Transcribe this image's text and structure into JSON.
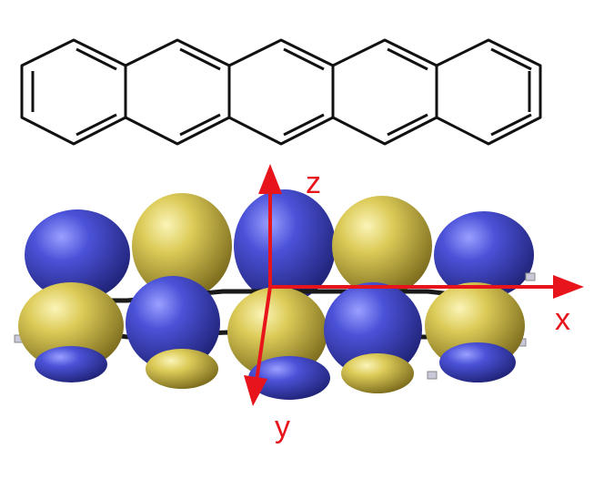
{
  "axes": {
    "z_label": "z",
    "x_label": "x",
    "y_label": "y"
  },
  "colors": {
    "axis": "#e8141c",
    "lobe_blue": "#3a3fb8",
    "lobe_yellow": "#d8c84e",
    "bond": "#1a1a1a"
  }
}
